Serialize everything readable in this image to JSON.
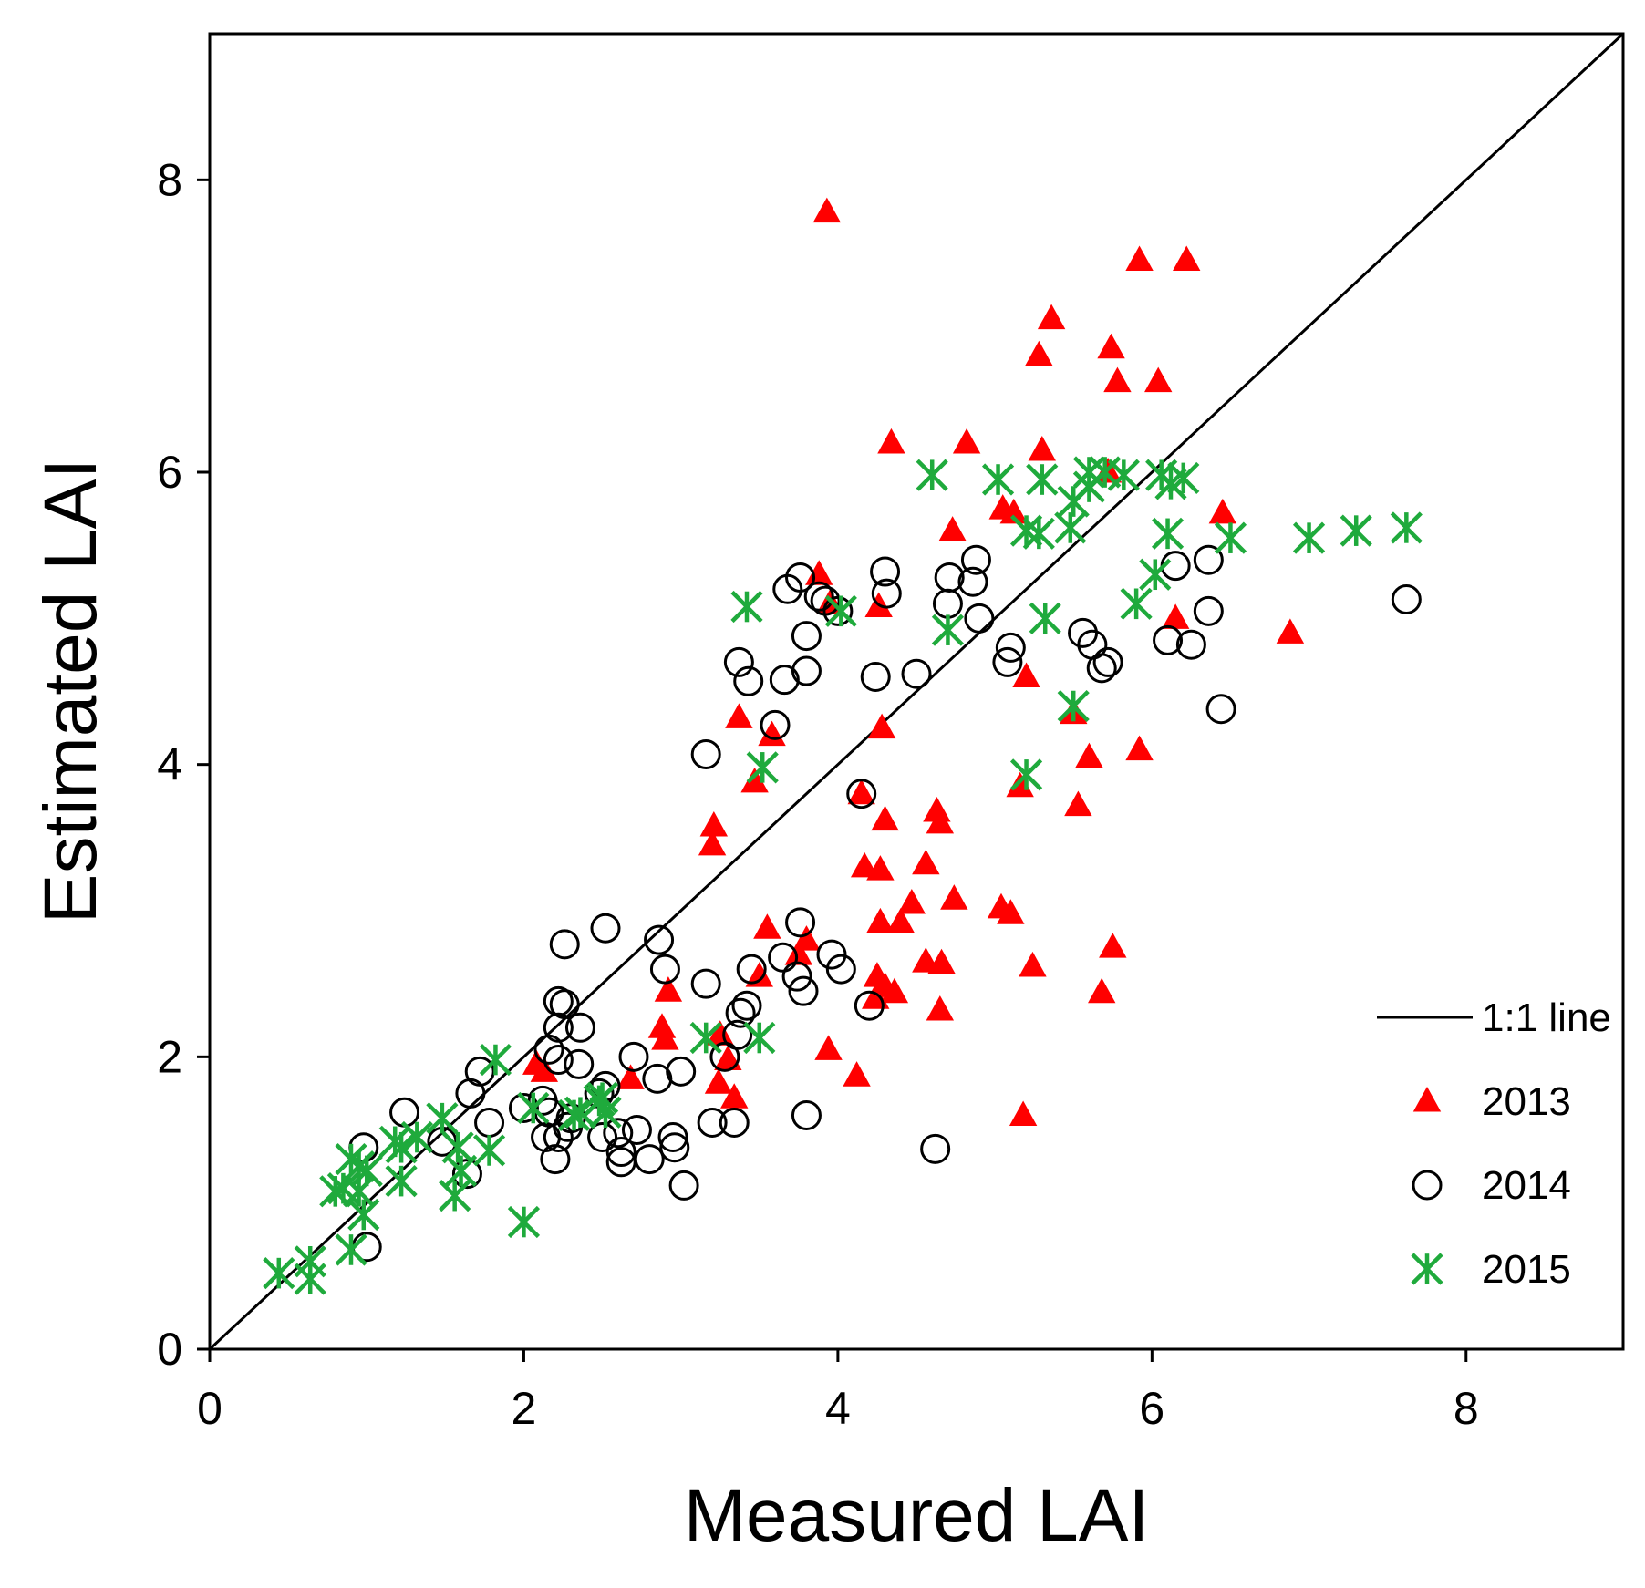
{
  "chart_data": {
    "type": "scatter",
    "xlabel": "Measured LAI",
    "ylabel": "Estimated LAI",
    "xlim": [
      0,
      9
    ],
    "ylim": [
      0,
      9
    ],
    "xticks": [
      0,
      2,
      4,
      6,
      8
    ],
    "yticks": [
      0,
      2,
      4,
      6,
      8
    ],
    "grid": false,
    "legend_position": "bottom-right",
    "reference_line": {
      "name": "1:1 line",
      "color": "#000000",
      "points": [
        [
          0,
          0
        ],
        [
          9,
          9
        ]
      ]
    },
    "series": [
      {
        "name": "2013",
        "marker": "triangle",
        "color": "#ff0000",
        "points": [
          [
            3.93,
            7.78
          ],
          [
            5.92,
            7.45
          ],
          [
            6.22,
            7.45
          ],
          [
            5.36,
            7.05
          ],
          [
            5.74,
            6.85
          ],
          [
            5.28,
            6.8
          ],
          [
            5.78,
            6.62
          ],
          [
            6.04,
            6.62
          ],
          [
            4.34,
            6.2
          ],
          [
            4.82,
            6.2
          ],
          [
            5.3,
            6.15
          ],
          [
            5.72,
            6.0
          ],
          [
            5.05,
            5.75
          ],
          [
            5.12,
            5.72
          ],
          [
            6.45,
            5.72
          ],
          [
            4.73,
            5.6
          ],
          [
            3.88,
            5.3
          ],
          [
            3.95,
            5.1
          ],
          [
            4.26,
            5.08
          ],
          [
            6.15,
            5.0
          ],
          [
            6.88,
            4.9
          ],
          [
            5.2,
            4.6
          ],
          [
            5.5,
            4.35
          ],
          [
            3.37,
            4.32
          ],
          [
            4.28,
            4.25
          ],
          [
            3.58,
            4.2
          ],
          [
            5.6,
            4.05
          ],
          [
            5.92,
            4.1
          ],
          [
            3.47,
            3.88
          ],
          [
            5.16,
            3.85
          ],
          [
            4.15,
            3.8
          ],
          [
            5.53,
            3.72
          ],
          [
            4.63,
            3.68
          ],
          [
            4.3,
            3.62
          ],
          [
            4.65,
            3.6
          ],
          [
            3.21,
            3.58
          ],
          [
            3.2,
            3.45
          ],
          [
            4.17,
            3.3
          ],
          [
            4.27,
            3.28
          ],
          [
            4.56,
            3.32
          ],
          [
            4.47,
            3.05
          ],
          [
            4.74,
            3.08
          ],
          [
            5.04,
            3.02
          ],
          [
            5.1,
            2.98
          ],
          [
            4.27,
            2.92
          ],
          [
            4.4,
            2.92
          ],
          [
            3.55,
            2.88
          ],
          [
            3.8,
            2.8
          ],
          [
            3.75,
            2.7
          ],
          [
            5.75,
            2.75
          ],
          [
            4.56,
            2.65
          ],
          [
            4.66,
            2.64
          ],
          [
            5.24,
            2.62
          ],
          [
            3.5,
            2.55
          ],
          [
            4.25,
            2.55
          ],
          [
            4.3,
            2.48
          ],
          [
            4.36,
            2.44
          ],
          [
            5.68,
            2.44
          ],
          [
            4.24,
            2.4
          ],
          [
            4.65,
            2.32
          ],
          [
            2.92,
            2.45
          ],
          [
            2.88,
            2.2
          ],
          [
            3.25,
            2.15
          ],
          [
            2.9,
            2.12
          ],
          [
            3.94,
            2.05
          ],
          [
            2.08,
            1.95
          ],
          [
            3.3,
            1.98
          ],
          [
            2.13,
            1.9
          ],
          [
            4.12,
            1.87
          ],
          [
            2.68,
            1.85
          ],
          [
            3.24,
            1.82
          ],
          [
            3.34,
            1.72
          ],
          [
            5.18,
            1.6
          ]
        ]
      },
      {
        "name": "2014",
        "marker": "circle",
        "color": "#000000",
        "points": [
          [
            7.62,
            5.13
          ],
          [
            3.76,
            5.28
          ],
          [
            3.68,
            5.2
          ],
          [
            3.88,
            5.15
          ],
          [
            3.92,
            5.12
          ],
          [
            4.0,
            5.05
          ],
          [
            4.3,
            5.32
          ],
          [
            4.31,
            5.17
          ],
          [
            4.71,
            5.28
          ],
          [
            4.7,
            5.1
          ],
          [
            4.86,
            5.25
          ],
          [
            4.88,
            5.4
          ],
          [
            4.9,
            5.0
          ],
          [
            3.8,
            4.88
          ],
          [
            6.15,
            5.36
          ],
          [
            6.36,
            5.4
          ],
          [
            6.36,
            5.05
          ],
          [
            6.1,
            4.85
          ],
          [
            6.25,
            4.82
          ],
          [
            5.56,
            4.9
          ],
          [
            5.62,
            4.82
          ],
          [
            5.68,
            4.66
          ],
          [
            5.72,
            4.7
          ],
          [
            5.1,
            4.8
          ],
          [
            5.08,
            4.7
          ],
          [
            3.37,
            4.7
          ],
          [
            3.43,
            4.57
          ],
          [
            3.66,
            4.58
          ],
          [
            3.8,
            4.64
          ],
          [
            4.24,
            4.6
          ],
          [
            4.5,
            4.62
          ],
          [
            3.6,
            4.27
          ],
          [
            6.44,
            4.38
          ],
          [
            3.16,
            4.07
          ],
          [
            4.15,
            3.8
          ],
          [
            2.52,
            2.88
          ],
          [
            2.86,
            2.8
          ],
          [
            3.76,
            2.92
          ],
          [
            2.26,
            2.77
          ],
          [
            2.9,
            2.6
          ],
          [
            3.65,
            2.68
          ],
          [
            3.45,
            2.6
          ],
          [
            3.96,
            2.7
          ],
          [
            4.02,
            2.6
          ],
          [
            3.74,
            2.55
          ],
          [
            3.78,
            2.45
          ],
          [
            3.16,
            2.5
          ],
          [
            3.42,
            2.35
          ],
          [
            3.38,
            2.3
          ],
          [
            2.22,
            2.38
          ],
          [
            2.26,
            2.36
          ],
          [
            2.36,
            2.2
          ],
          [
            2.22,
            2.2
          ],
          [
            4.2,
            2.35
          ],
          [
            3.36,
            2.15
          ],
          [
            2.7,
            2.0
          ],
          [
            3.28,
            2.0
          ],
          [
            2.16,
            2.05
          ],
          [
            2.22,
            1.98
          ],
          [
            2.35,
            1.95
          ],
          [
            2.52,
            1.8
          ],
          [
            2.85,
            1.85
          ],
          [
            3.0,
            1.9
          ],
          [
            1.72,
            1.9
          ],
          [
            1.66,
            1.75
          ],
          [
            2.48,
            1.75
          ],
          [
            2.12,
            1.7
          ],
          [
            2.16,
            1.62
          ],
          [
            2.0,
            1.65
          ],
          [
            1.78,
            1.55
          ],
          [
            1.24,
            1.62
          ],
          [
            2.3,
            1.58
          ],
          [
            2.72,
            1.5
          ],
          [
            2.6,
            1.48
          ],
          [
            2.28,
            1.52
          ],
          [
            2.5,
            1.45
          ],
          [
            2.14,
            1.45
          ],
          [
            2.22,
            1.45
          ],
          [
            2.95,
            1.45
          ],
          [
            2.96,
            1.38
          ],
          [
            2.62,
            1.35
          ],
          [
            2.8,
            1.3
          ],
          [
            2.62,
            1.28
          ],
          [
            2.2,
            1.3
          ],
          [
            3.2,
            1.55
          ],
          [
            3.34,
            1.55
          ],
          [
            3.8,
            1.6
          ],
          [
            1.48,
            1.42
          ],
          [
            1.64,
            1.2
          ],
          [
            0.98,
            1.38
          ],
          [
            3.02,
            1.12
          ],
          [
            4.62,
            1.37
          ],
          [
            1.0,
            0.7
          ]
        ]
      },
      {
        "name": "2015",
        "marker": "asterisk",
        "color": "#1faa3c",
        "points": [
          [
            4.6,
            5.98
          ],
          [
            5.02,
            5.95
          ],
          [
            5.3,
            5.95
          ],
          [
            5.6,
            6.0
          ],
          [
            5.7,
            6.0
          ],
          [
            5.82,
            5.98
          ],
          [
            5.6,
            5.9
          ],
          [
            6.06,
            5.98
          ],
          [
            6.12,
            5.92
          ],
          [
            6.2,
            5.96
          ],
          [
            5.5,
            5.8
          ],
          [
            5.2,
            5.6
          ],
          [
            5.28,
            5.58
          ],
          [
            5.48,
            5.62
          ],
          [
            6.1,
            5.58
          ],
          [
            6.5,
            5.55
          ],
          [
            7.0,
            5.55
          ],
          [
            7.3,
            5.6
          ],
          [
            7.62,
            5.62
          ],
          [
            6.02,
            5.3
          ],
          [
            5.9,
            5.1
          ],
          [
            3.42,
            5.08
          ],
          [
            4.02,
            5.05
          ],
          [
            5.32,
            5.0
          ],
          [
            4.7,
            4.92
          ],
          [
            5.5,
            4.4
          ],
          [
            3.52,
            3.98
          ],
          [
            5.2,
            3.93
          ],
          [
            3.16,
            2.13
          ],
          [
            3.5,
            2.13
          ],
          [
            1.82,
            1.98
          ],
          [
            2.06,
            1.65
          ],
          [
            2.36,
            1.62
          ],
          [
            2.48,
            1.7
          ],
          [
            2.5,
            1.72
          ],
          [
            2.52,
            1.62
          ],
          [
            2.32,
            1.6
          ],
          [
            1.48,
            1.58
          ],
          [
            1.32,
            1.45
          ],
          [
            1.18,
            1.42
          ],
          [
            1.22,
            1.38
          ],
          [
            1.58,
            1.38
          ],
          [
            1.78,
            1.36
          ],
          [
            1.6,
            1.22
          ],
          [
            0.9,
            1.3
          ],
          [
            0.95,
            1.25
          ],
          [
            1.0,
            1.22
          ],
          [
            0.85,
            1.1
          ],
          [
            0.8,
            1.08
          ],
          [
            1.22,
            1.15
          ],
          [
            0.95,
            1.08
          ],
          [
            1.56,
            1.05
          ],
          [
            0.98,
            0.92
          ],
          [
            2.0,
            0.87
          ],
          [
            0.9,
            0.68
          ],
          [
            0.64,
            0.6
          ],
          [
            0.44,
            0.52
          ],
          [
            0.64,
            0.48
          ]
        ]
      }
    ]
  }
}
